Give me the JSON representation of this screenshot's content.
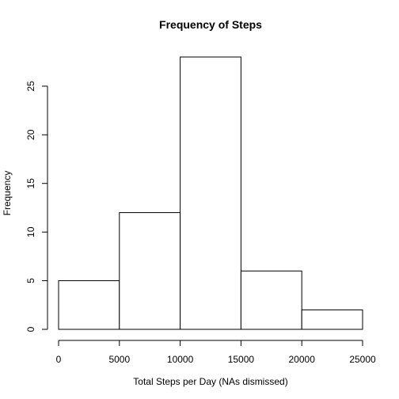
{
  "chart_data": {
    "type": "bar",
    "subtype": "histogram",
    "title": "Frequency of Steps",
    "xlabel": "Total Steps per Day (NAs dismissed)",
    "ylabel": "Frequency",
    "bins": [
      {
        "start": 0,
        "end": 5000,
        "count": 5
      },
      {
        "start": 5000,
        "end": 10000,
        "count": 12
      },
      {
        "start": 10000,
        "end": 15000,
        "count": 28
      },
      {
        "start": 15000,
        "end": 20000,
        "count": 6
      },
      {
        "start": 20000,
        "end": 25000,
        "count": 2
      }
    ],
    "xlim": [
      0,
      25000
    ],
    "ylim": [
      0,
      28
    ],
    "xticks": [
      0,
      5000,
      10000,
      15000,
      20000,
      25000
    ],
    "yticks": [
      0,
      5,
      10,
      15,
      20,
      25
    ],
    "grid": false,
    "legend": "none",
    "bar_fill": "#ffffff",
    "bar_stroke": "#000000"
  }
}
